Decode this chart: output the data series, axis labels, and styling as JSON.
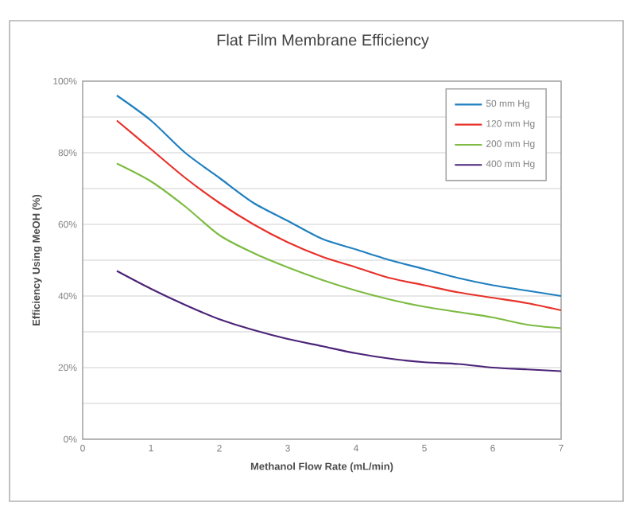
{
  "chart_data": {
    "type": "line",
    "title": "Flat Film Membrane Efficiency",
    "xlabel": "Methanol Flow Rate (mL/min)",
    "ylabel": "Efficiency Using MeOH (%)",
    "x": [
      0.5,
      1,
      1.5,
      2,
      2.5,
      3,
      3.5,
      4,
      4.5,
      5,
      5.5,
      6,
      6.5,
      7
    ],
    "series": [
      {
        "name": "50 mm Hg",
        "color": "#1f7fc0",
        "values": [
          96,
          89,
          80,
          73,
          66,
          61,
          56,
          53,
          50,
          47.5,
          45,
          43,
          41.5,
          40
        ]
      },
      {
        "name": "120 mm Hg",
        "color": "#e8312a",
        "values": [
          89,
          81,
          73,
          66,
          60,
          55,
          51,
          48,
          45,
          43,
          41,
          39.5,
          38,
          36
        ]
      },
      {
        "name": "200 mm Hg",
        "color": "#7dbb42",
        "values": [
          77,
          72,
          65,
          57,
          52,
          48,
          44.5,
          41.5,
          39,
          37,
          35.5,
          34,
          32,
          31
        ]
      },
      {
        "name": "400 mm Hg",
        "color": "#4b2378",
        "values": [
          47,
          42,
          37.5,
          33.5,
          30.5,
          28,
          26,
          24,
          22.5,
          21.5,
          21,
          20,
          19.5,
          19
        ]
      }
    ],
    "xlim": [
      0,
      7
    ],
    "xticks": [
      0,
      1,
      2,
      3,
      4,
      5,
      6,
      7
    ],
    "ylim": [
      0,
      100
    ],
    "yticks": [
      {
        "value": 0,
        "label": "0%"
      },
      {
        "value": 10,
        "label": null
      },
      {
        "value": 20,
        "label": "20%"
      },
      {
        "value": 30,
        "label": null
      },
      {
        "value": 40,
        "label": "40%"
      },
      {
        "value": 50,
        "label": null
      },
      {
        "value": 60,
        "label": "60%"
      },
      {
        "value": 70,
        "label": null
      },
      {
        "value": 80,
        "label": "80%"
      },
      {
        "value": 90,
        "label": null
      },
      {
        "value": 100,
        "label": "100%"
      }
    ],
    "grid": "y",
    "legend": "top right",
    "marker": "none",
    "line_style": "solid"
  }
}
